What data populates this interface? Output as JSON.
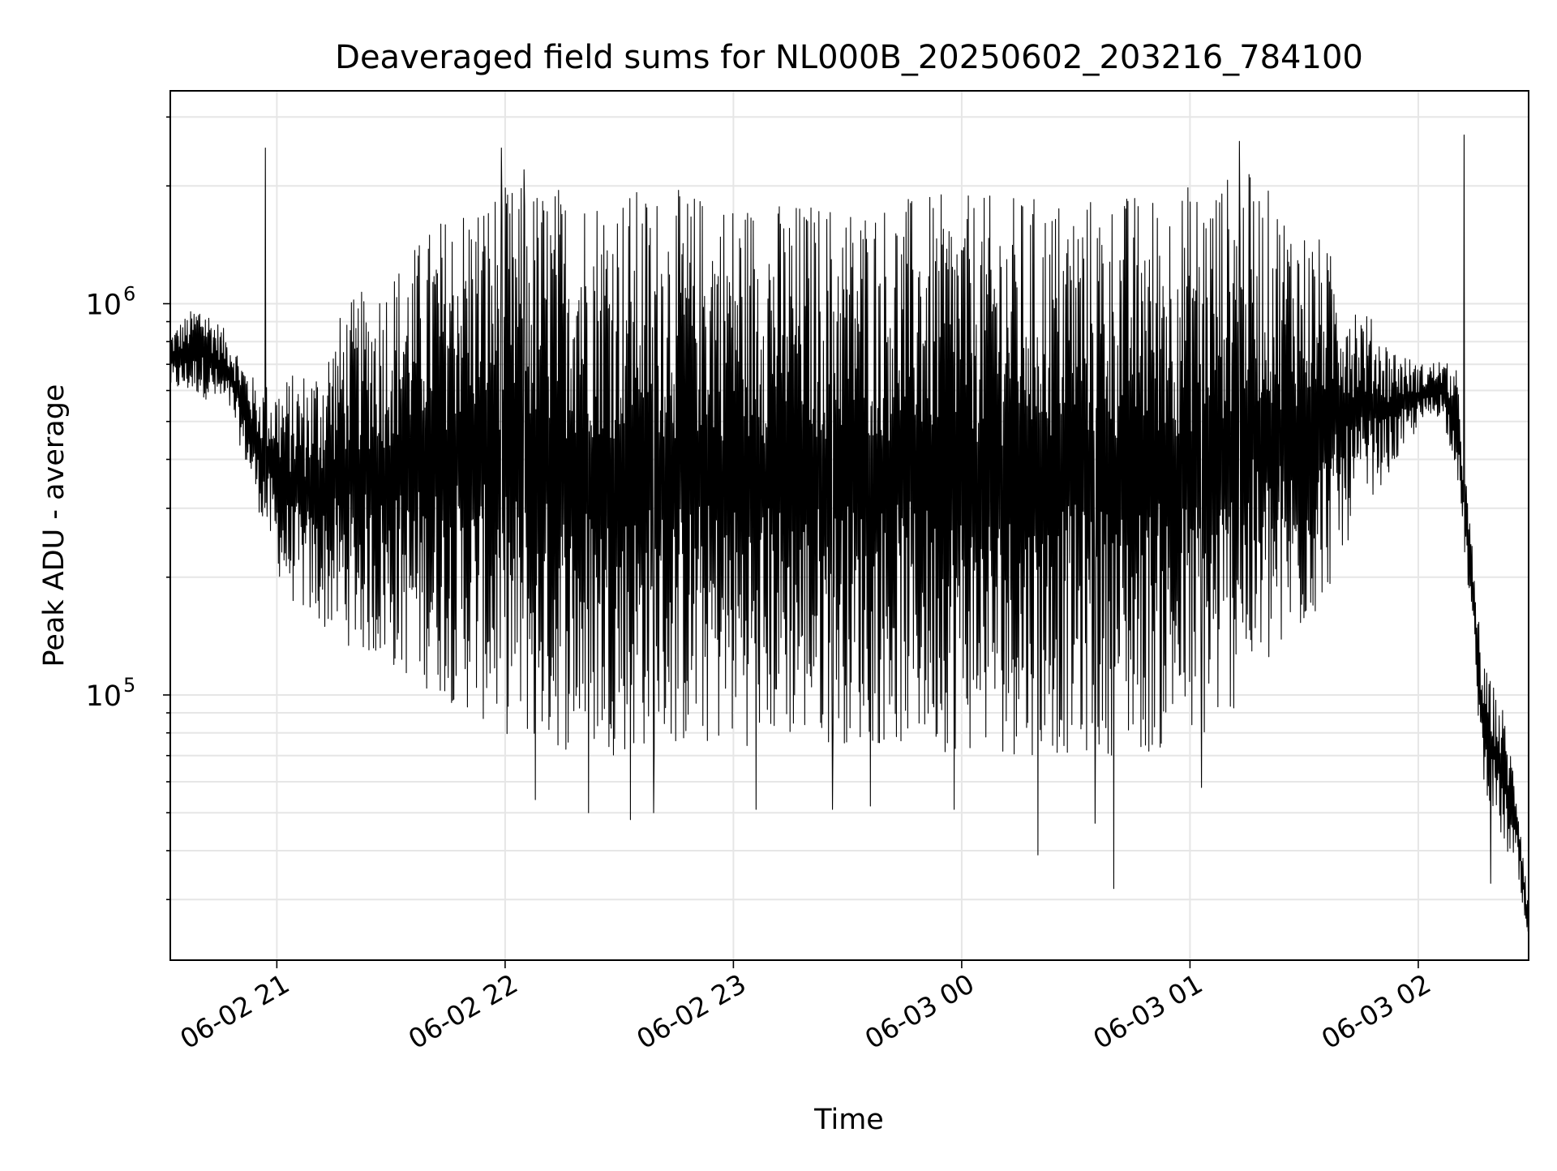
{
  "chart_data": {
    "type": "line",
    "title": "Deaveraged field sums for NL000B_20250602_203216_784100",
    "xlabel": "Time",
    "ylabel": "Peak ADU - average",
    "yscale": "log",
    "grid": true,
    "legend": "none",
    "line_color": "#000000",
    "grid_color": "#e6e6e6",
    "xlim": [
      "2025-06-02 20:32:00",
      "2025-06-03 02:29:00"
    ],
    "ylim": [
      21000,
      3500000
    ],
    "x_ticks": [
      {
        "time": "2025-06-02 21:00:00",
        "label": "06-02 21"
      },
      {
        "time": "2025-06-02 22:00:00",
        "label": "06-02 22"
      },
      {
        "time": "2025-06-02 23:00:00",
        "label": "06-02 23"
      },
      {
        "time": "2025-06-03 00:00:00",
        "label": "06-03 00"
      },
      {
        "time": "2025-06-03 01:00:00",
        "label": "06-03 01"
      },
      {
        "time": "2025-06-03 02:00:00",
        "label": "06-03 02"
      }
    ],
    "y_ticks": [
      {
        "value": 100000,
        "base": "10",
        "exp": "5"
      },
      {
        "value": 1000000,
        "base": "10",
        "exp": "6"
      }
    ],
    "series": [
      {
        "envelope": [
          {
            "t": "2025-06-02 20:32:00",
            "upper": 850000,
            "lower": 600000
          },
          {
            "t": "2025-06-02 20:40:00",
            "upper": 1020000,
            "lower": 580000
          },
          {
            "t": "2025-06-02 20:48:00",
            "upper": 820000,
            "lower": 520000
          },
          {
            "t": "2025-06-02 20:55:00",
            "upper": 620000,
            "lower": 300000
          },
          {
            "t": "2025-06-02 21:02:00",
            "upper": 650000,
            "lower": 180000
          },
          {
            "t": "2025-06-02 21:10:00",
            "upper": 700000,
            "lower": 150000
          },
          {
            "t": "2025-06-02 21:18:00",
            "upper": 1000000,
            "lower": 135000
          },
          {
            "t": "2025-06-02 21:26:00",
            "upper": 1150000,
            "lower": 120000
          },
          {
            "t": "2025-06-02 21:34:00",
            "upper": 1350000,
            "lower": 110000
          },
          {
            "t": "2025-06-02 21:42:00",
            "upper": 1650000,
            "lower": 100000
          },
          {
            "t": "2025-06-02 21:50:00",
            "upper": 1900000,
            "lower": 90000
          },
          {
            "t": "2025-06-02 21:58:00",
            "upper": 2000000,
            "lower": 80000
          },
          {
            "t": "2025-06-02 22:10:00",
            "upper": 2050000,
            "lower": 72000
          },
          {
            "t": "2025-06-02 22:30:00",
            "upper": 2000000,
            "lower": 70000
          },
          {
            "t": "2025-06-02 22:50:00",
            "upper": 1950000,
            "lower": 72000
          },
          {
            "t": "2025-06-02 23:10:00",
            "upper": 1850000,
            "lower": 75000
          },
          {
            "t": "2025-06-02 23:30:00",
            "upper": 1850000,
            "lower": 75000
          },
          {
            "t": "2025-06-02 23:50:00",
            "upper": 1900000,
            "lower": 72000
          },
          {
            "t": "2025-06-03 00:10:00",
            "upper": 1900000,
            "lower": 70000
          },
          {
            "t": "2025-06-03 00:30:00",
            "upper": 1900000,
            "lower": 70000
          },
          {
            "t": "2025-06-03 00:50:00",
            "upper": 1950000,
            "lower": 70000
          },
          {
            "t": "2025-06-03 01:05:00",
            "upper": 2100000,
            "lower": 75000
          },
          {
            "t": "2025-06-03 01:15:00",
            "upper": 2200000,
            "lower": 100000
          },
          {
            "t": "2025-06-03 01:25:00",
            "upper": 1800000,
            "lower": 120000
          },
          {
            "t": "2025-06-03 01:35:00",
            "upper": 1450000,
            "lower": 170000
          },
          {
            "t": "2025-06-03 01:45:00",
            "upper": 1000000,
            "lower": 300000
          },
          {
            "t": "2025-06-03 01:52:00",
            "upper": 800000,
            "lower": 360000
          },
          {
            "t": "2025-06-03 02:00:00",
            "upper": 700000,
            "lower": 480000
          },
          {
            "t": "2025-06-03 02:06:00",
            "upper": 720000,
            "lower": 520000
          },
          {
            "t": "2025-06-03 02:10:00",
            "upper": 680000,
            "lower": 380000
          },
          {
            "t": "2025-06-03 02:14:00",
            "upper": 250000,
            "lower": 150000
          },
          {
            "t": "2025-06-03 02:17:00",
            "upper": 120000,
            "lower": 60000
          },
          {
            "t": "2025-06-03 02:22:00",
            "upper": 95000,
            "lower": 42000
          },
          {
            "t": "2025-06-03 02:26:00",
            "upper": 60000,
            "lower": 34000
          },
          {
            "t": "2025-06-03 02:29:00",
            "upper": 30000,
            "lower": 21000
          }
        ],
        "spikes": [
          {
            "t": "2025-06-02 20:57:00",
            "value": 2500000
          },
          {
            "t": "2025-06-02 21:59:00",
            "value": 2500000
          },
          {
            "t": "2025-06-02 22:05:00",
            "value": 2200000
          },
          {
            "t": "2025-06-02 22:08:00",
            "value": 54000
          },
          {
            "t": "2025-06-02 22:22:00",
            "value": 50000
          },
          {
            "t": "2025-06-02 22:33:00",
            "value": 48000
          },
          {
            "t": "2025-06-02 22:39:00",
            "value": 50000
          },
          {
            "t": "2025-06-02 23:06:00",
            "value": 51000
          },
          {
            "t": "2025-06-02 23:26:00",
            "value": 51000
          },
          {
            "t": "2025-06-02 23:36:00",
            "value": 52000
          },
          {
            "t": "2025-06-02 23:58:00",
            "value": 51000
          },
          {
            "t": "2025-06-03 00:20:00",
            "value": 39000
          },
          {
            "t": "2025-06-03 00:35:00",
            "value": 47000
          },
          {
            "t": "2025-06-03 00:40:00",
            "value": 32000
          },
          {
            "t": "2025-06-03 01:03:00",
            "value": 58000
          },
          {
            "t": "2025-06-03 01:13:00",
            "value": 2600000
          },
          {
            "t": "2025-06-03 02:12:00",
            "value": 2700000
          },
          {
            "t": "2025-06-03 02:19:00",
            "value": 33000
          }
        ]
      }
    ]
  }
}
